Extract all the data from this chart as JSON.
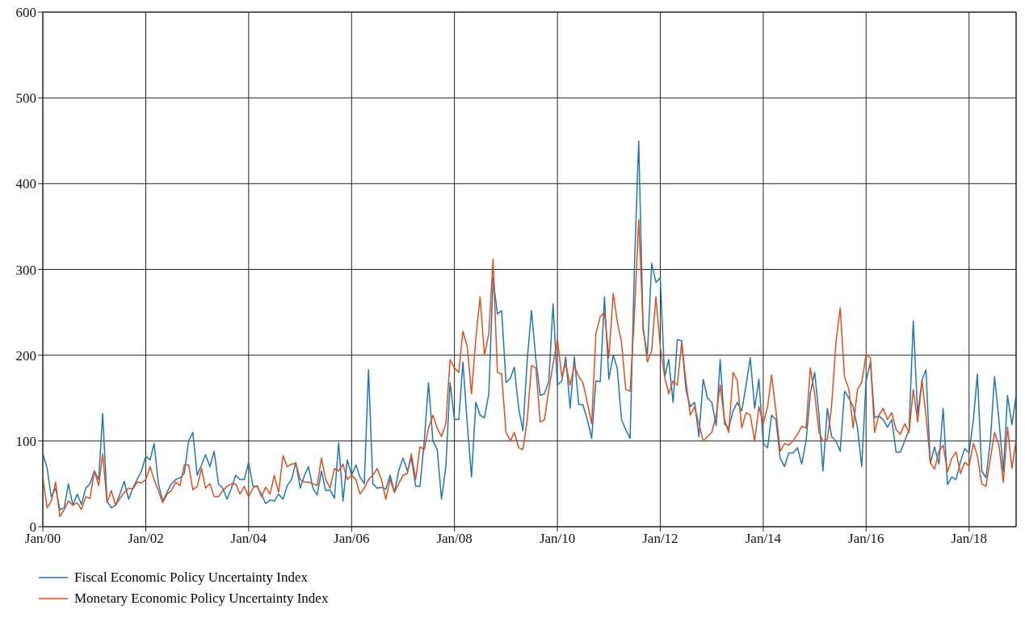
{
  "chart_data": {
    "type": "line",
    "x": [
      "2000-01",
      "2000-02",
      "2000-03",
      "2000-04",
      "2000-05",
      "2000-06",
      "2000-07",
      "2000-08",
      "2000-09",
      "2000-10",
      "2000-11",
      "2000-12",
      "2001-01",
      "2001-02",
      "2001-03",
      "2001-04",
      "2001-05",
      "2001-06",
      "2001-07",
      "2001-08",
      "2001-09",
      "2001-10",
      "2001-11",
      "2001-12",
      "2002-01",
      "2002-02",
      "2002-03",
      "2002-04",
      "2002-05",
      "2002-06",
      "2002-07",
      "2002-08",
      "2002-09",
      "2002-10",
      "2002-11",
      "2002-12",
      "2003-01",
      "2003-02",
      "2003-03",
      "2003-04",
      "2003-05",
      "2003-06",
      "2003-07",
      "2003-08",
      "2003-09",
      "2003-10",
      "2003-11",
      "2003-12",
      "2004-01",
      "2004-02",
      "2004-03",
      "2004-04",
      "2004-05",
      "2004-06",
      "2004-07",
      "2004-08",
      "2004-09",
      "2004-10",
      "2004-11",
      "2004-12",
      "2005-01",
      "2005-02",
      "2005-03",
      "2005-04",
      "2005-05",
      "2005-06",
      "2005-07",
      "2005-08",
      "2005-09",
      "2005-10",
      "2005-11",
      "2005-12",
      "2006-01",
      "2006-02",
      "2006-03",
      "2006-04",
      "2006-05",
      "2006-06",
      "2006-07",
      "2006-08",
      "2006-09",
      "2006-10",
      "2006-11",
      "2006-12",
      "2007-01",
      "2007-02",
      "2007-03",
      "2007-04",
      "2007-05",
      "2007-06",
      "2007-07",
      "2007-08",
      "2007-09",
      "2007-10",
      "2007-11",
      "2007-12",
      "2008-01",
      "2008-02",
      "2008-03",
      "2008-04",
      "2008-05",
      "2008-06",
      "2008-07",
      "2008-08",
      "2008-09",
      "2008-10",
      "2008-11",
      "2008-12",
      "2009-01",
      "2009-02",
      "2009-03",
      "2009-04",
      "2009-05",
      "2009-06",
      "2009-07",
      "2009-08",
      "2009-09",
      "2009-10",
      "2009-11",
      "2009-12",
      "2010-01",
      "2010-02",
      "2010-03",
      "2010-04",
      "2010-05",
      "2010-06",
      "2010-07",
      "2010-08",
      "2010-09",
      "2010-10",
      "2010-11",
      "2010-12",
      "2011-01",
      "2011-02",
      "2011-03",
      "2011-04",
      "2011-05",
      "2011-06",
      "2011-07",
      "2011-08",
      "2011-09",
      "2011-10",
      "2011-11",
      "2011-12",
      "2012-01",
      "2012-02",
      "2012-03",
      "2012-04",
      "2012-05",
      "2012-06",
      "2012-07",
      "2012-08",
      "2012-09",
      "2012-10",
      "2012-11",
      "2012-12",
      "2013-01",
      "2013-02",
      "2013-03",
      "2013-04",
      "2013-05",
      "2013-06",
      "2013-07",
      "2013-08",
      "2013-09",
      "2013-10",
      "2013-11",
      "2013-12",
      "2014-01",
      "2014-02",
      "2014-03",
      "2014-04",
      "2014-05",
      "2014-06",
      "2014-07",
      "2014-08",
      "2014-09",
      "2014-10",
      "2014-11",
      "2014-12",
      "2015-01",
      "2015-02",
      "2015-03",
      "2015-04",
      "2015-05",
      "2015-06",
      "2015-07",
      "2015-08",
      "2015-09",
      "2015-10",
      "2015-11",
      "2015-12",
      "2016-01",
      "2016-02",
      "2016-03",
      "2016-04",
      "2016-05",
      "2016-06",
      "2016-07",
      "2016-08",
      "2016-09",
      "2016-10",
      "2016-11",
      "2016-12",
      "2017-01",
      "2017-02",
      "2017-03",
      "2017-04",
      "2017-05",
      "2017-06",
      "2017-07",
      "2017-08",
      "2017-09",
      "2017-10",
      "2017-11",
      "2017-12",
      "2018-01",
      "2018-02",
      "2018-03",
      "2018-04",
      "2018-05",
      "2018-06",
      "2018-07",
      "2018-08",
      "2018-09",
      "2018-10",
      "2018-11",
      "2018-12"
    ],
    "series": [
      {
        "name": "Fiscal Economic Policy Uncertainty Index",
        "color": "#1f77b4",
        "values": [
          85,
          68,
          35,
          45,
          20,
          22,
          50,
          25,
          38,
          26,
          45,
          50,
          65,
          55,
          132,
          30,
          22,
          25,
          38,
          53,
          32,
          45,
          55,
          65,
          82,
          78,
          97,
          50,
          30,
          40,
          50,
          55,
          57,
          62,
          100,
          110,
          60,
          72,
          84,
          70,
          88,
          50,
          45,
          32,
          45,
          60,
          55,
          55,
          75,
          47,
          47,
          38,
          27,
          31,
          30,
          38,
          32,
          48,
          55,
          75,
          45,
          60,
          70,
          45,
          37,
          65,
          42,
          43,
          33,
          98,
          30,
          78,
          60,
          72,
          58,
          50,
          183,
          50,
          45,
          46,
          44,
          60,
          40,
          65,
          80,
          65,
          80,
          47,
          47,
          100,
          168,
          100,
          90,
          32,
          70,
          168,
          125,
          125,
          192,
          120,
          58,
          145,
          130,
          127,
          155,
          290,
          248,
          252,
          168,
          173,
          186,
          138,
          112,
          195,
          252,
          195,
          153,
          155,
          170,
          260,
          165,
          170,
          198,
          138,
          198,
          143,
          142,
          125,
          103,
          170,
          169,
          268,
          172,
          200,
          185,
          125,
          113,
          103,
          300,
          450,
          230,
          200,
          307,
          285,
          290,
          175,
          195,
          145,
          218,
          217,
          160,
          140,
          145,
          105,
          172,
          150,
          145,
          118,
          195,
          120,
          115,
          135,
          145,
          135,
          165,
          197,
          138,
          172,
          97,
          92,
          130,
          125,
          80,
          70,
          86,
          86,
          92,
          73,
          100,
          155,
          180,
          130,
          65,
          138,
          105,
          100,
          88,
          158,
          150,
          140,
          115,
          70,
          170,
          192,
          127,
          129,
          125,
          116,
          125,
          87,
          87,
          100,
          113,
          240,
          131,
          171,
          183,
          74,
          93,
          73,
          138,
          49,
          58,
          55,
          76,
          91,
          86,
          125,
          178,
          65,
          57,
          100,
          175,
          125,
          64,
          153,
          119,
          153
        ]
      },
      {
        "name": "Monetary Economic Policy Uncertainty Index",
        "color": "#dd4f1c",
        "values": [
          57,
          22,
          30,
          52,
          12,
          20,
          30,
          25,
          28,
          20,
          35,
          33,
          65,
          48,
          85,
          28,
          42,
          25,
          33,
          40,
          45,
          44,
          52,
          51,
          55,
          70,
          55,
          42,
          28,
          38,
          42,
          52,
          48,
          72,
          72,
          43,
          47,
          68,
          45,
          50,
          35,
          35,
          42,
          47,
          50,
          50,
          38,
          47,
          35,
          45,
          48,
          35,
          46,
          38,
          60,
          40,
          83,
          70,
          73,
          74,
          55,
          52,
          52,
          50,
          48,
          80,
          55,
          45,
          68,
          65,
          73,
          55,
          60,
          55,
          38,
          45,
          55,
          60,
          68,
          55,
          32,
          55,
          40,
          50,
          60,
          62,
          85,
          55,
          93,
          90,
          115,
          130,
          115,
          105,
          120,
          195,
          185,
          180,
          228,
          210,
          155,
          220,
          268,
          200,
          225,
          312,
          180,
          178,
          110,
          100,
          110,
          92,
          90,
          125,
          188,
          185,
          122,
          125,
          160,
          190,
          218,
          175,
          190,
          165,
          188,
          175,
          168,
          145,
          120,
          225,
          245,
          250,
          197,
          272,
          240,
          215,
          160,
          158,
          245,
          358,
          235,
          192,
          205,
          268,
          210,
          175,
          155,
          170,
          165,
          215,
          170,
          130,
          140,
          120,
          100,
          105,
          110,
          130,
          165,
          125,
          110,
          180,
          170,
          115,
          133,
          130,
          100,
          140,
          120,
          140,
          177,
          135,
          88,
          97,
          95,
          100,
          108,
          117,
          115,
          185,
          155,
          110,
          100,
          102,
          140,
          215,
          255,
          175,
          160,
          115,
          160,
          168,
          200,
          197,
          110,
          130,
          138,
          125,
          133,
          113,
          108,
          120,
          110,
          160,
          122,
          171,
          130,
          75,
          67,
          88,
          95,
          64,
          80,
          87,
          62,
          75,
          71,
          97,
          83,
          50,
          47,
          79,
          110,
          95,
          52,
          116,
          68,
          101
        ]
      }
    ],
    "xlim": [
      "2000-01",
      "2018-12"
    ],
    "xticks": [
      {
        "value": "2000-01",
        "label": "Jan/00"
      },
      {
        "value": "2002-01",
        "label": "Jan/02"
      },
      {
        "value": "2004-01",
        "label": "Jan/04"
      },
      {
        "value": "2006-01",
        "label": "Jan/06"
      },
      {
        "value": "2008-01",
        "label": "Jan/08"
      },
      {
        "value": "2010-01",
        "label": "Jan/10"
      },
      {
        "value": "2012-01",
        "label": "Jan/12"
      },
      {
        "value": "2014-01",
        "label": "Jan/14"
      },
      {
        "value": "2016-01",
        "label": "Jan/16"
      },
      {
        "value": "2018-01",
        "label": "Jan/18"
      }
    ],
    "ylim": [
      0,
      600
    ],
    "yticks": [
      0,
      100,
      200,
      300,
      400,
      500,
      600
    ],
    "grid": true,
    "legend": "bottom left",
    "marker": "none",
    "line_style": "solid"
  }
}
